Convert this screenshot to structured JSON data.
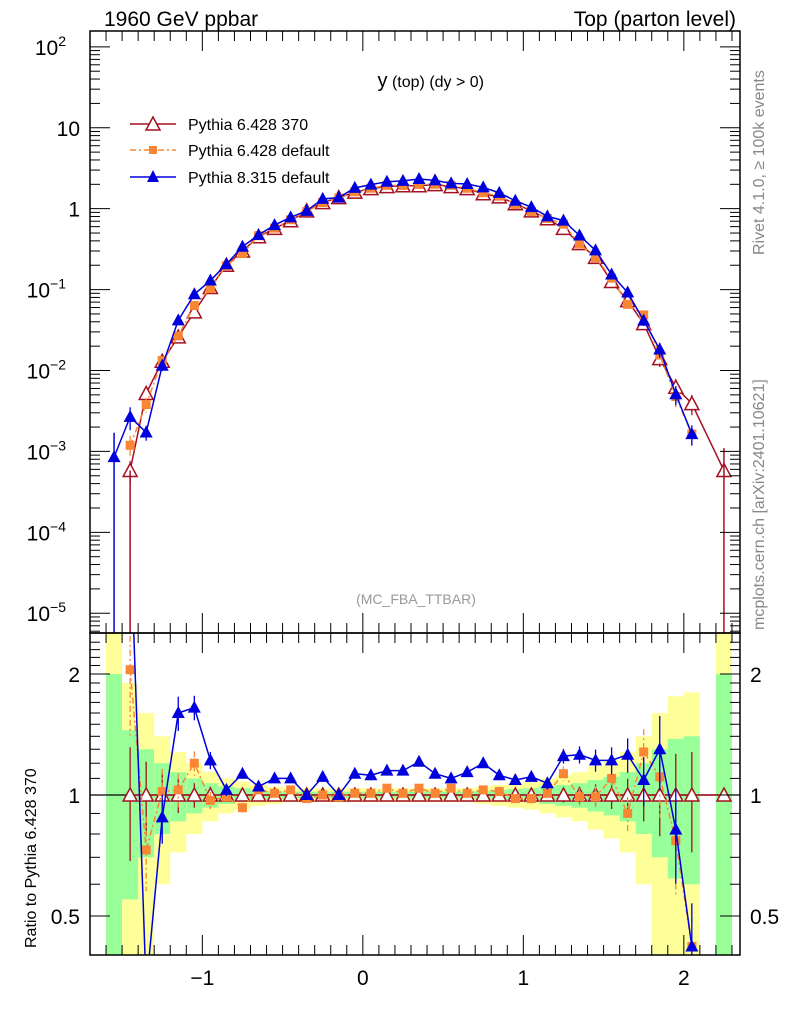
{
  "header": {
    "left_title": "1960 GeV ppbar",
    "right_title": "Top (parton level)",
    "plot_title_main": "y",
    "plot_title_rest": "(top) (dy > 0)",
    "analysis": "(MC_FBA_TTBAR)",
    "side_rivet": "Rivet 4.1.0, ≥ 100k events",
    "side_mcplots": "mcplots.cern.ch [arXiv:2401.10621]"
  },
  "chart_data": {
    "type": "line",
    "title": "y (top) (dy > 0)",
    "xlabel": "",
    "ylabel": "",
    "ratio_ylabel": "Ratio to Pythia 6.428 370",
    "xlim": [
      -1.7,
      2.35
    ],
    "ylim": [
      5.7e-06,
      157
    ],
    "yscale": "log",
    "ratio_ylim": [
      0.4,
      2.53
    ],
    "legend_position": "top-left",
    "x_ticks": [
      {
        "v": -1,
        "label": "−1"
      },
      {
        "v": 0,
        "label": "0"
      },
      {
        "v": 1,
        "label": "1"
      },
      {
        "v": 2,
        "label": "2"
      }
    ],
    "y_ticks": [
      {
        "v": 100,
        "base": "10",
        "sup": "2"
      },
      {
        "v": 10,
        "base": "10",
        "sup": ""
      },
      {
        "v": 1,
        "base": "1",
        "sup": ""
      },
      {
        "v": 0.1,
        "base": "10",
        "sup": "−1"
      },
      {
        "v": 0.01,
        "base": "10",
        "sup": "−2"
      },
      {
        "v": 0.001,
        "base": "10",
        "sup": "−3"
      },
      {
        "v": 0.0001,
        "base": "10",
        "sup": "−4"
      },
      {
        "v": 1e-05,
        "base": "10",
        "sup": "−5"
      }
    ],
    "ratio_ticks": [
      {
        "v": 0.5,
        "label": "0.5"
      },
      {
        "v": 1,
        "label": "1"
      },
      {
        "v": 2,
        "label": "2"
      }
    ],
    "x": [
      -1.55,
      -1.45,
      -1.35,
      -1.25,
      -1.15,
      -1.05,
      -0.95,
      -0.85,
      -0.75,
      -0.65,
      -0.55,
      -0.45,
      -0.35,
      -0.25,
      -0.15,
      -0.05,
      0.05,
      0.15,
      0.25,
      0.35,
      0.45,
      0.55,
      0.65,
      0.75,
      0.85,
      0.95,
      1.05,
      1.15,
      1.25,
      1.35,
      1.45,
      1.55,
      1.65,
      1.75,
      1.85,
      1.95,
      2.05,
      2.15,
      2.25
    ],
    "series": [
      {
        "name": "Pythia 6.428 370",
        "color": "#a50f22",
        "marker": "open-triangle",
        "style": "solid",
        "values": [
          null,
          0.00058,
          0.0052,
          0.013,
          0.026,
          0.053,
          0.106,
          0.2,
          0.3,
          0.45,
          0.57,
          0.71,
          0.94,
          1.19,
          1.37,
          1.6,
          1.77,
          1.87,
          1.92,
          1.92,
          1.98,
          1.87,
          1.77,
          1.53,
          1.4,
          1.15,
          0.94,
          0.75,
          0.57,
          0.37,
          0.25,
          0.126,
          0.073,
          0.038,
          0.014,
          0.0062,
          0.0039,
          null,
          0.00058
        ]
      },
      {
        "name": "Pythia 6.428 default",
        "color": "#f98635",
        "marker": "square",
        "style": "dashdot",
        "ratio": [
          null,
          2.05,
          0.73,
          1.02,
          1.03,
          1.2,
          0.97,
          0.99,
          0.93,
          1.03,
          1.01,
          1.03,
          0.98,
          1.0,
          0.99,
          1.01,
          1.01,
          1.04,
          1.01,
          1.04,
          1.01,
          1.04,
          1.01,
          1.03,
          1.02,
          0.98,
          0.98,
          1.01,
          1.13,
          0.99,
          0.99,
          1.1,
          0.9,
          1.28,
          1.11,
          0.77,
          0.42,
          null,
          null
        ]
      },
      {
        "name": "Pythia 8.315 default",
        "color": "#0000dd",
        "marker": "filled-triangle",
        "style": "solid",
        "ratio": [
          null,
          4.6,
          0.33,
          0.88,
          1.6,
          1.65,
          1.22,
          1.03,
          1.13,
          1.05,
          1.1,
          1.1,
          1.0,
          1.11,
          1.0,
          1.13,
          1.12,
          1.15,
          1.15,
          1.21,
          1.13,
          1.1,
          1.14,
          1.2,
          1.12,
          1.09,
          1.11,
          1.07,
          1.25,
          1.26,
          1.22,
          1.22,
          1.26,
          1.09,
          1.3,
          0.82,
          0.42,
          null,
          null
        ],
        "extra_values": {
          "-1.55": 0.00085
        }
      }
    ],
    "reference_rel_error": [
      1.0,
      0.45,
      0.3,
      0.2,
      0.14,
      0.1,
      0.07,
      0.05,
      0.04,
      0.03,
      0.025,
      0.02,
      0.02,
      0.02,
      0.02,
      0.02,
      0.02,
      0.02,
      0.02,
      0.02,
      0.02,
      0.02,
      0.02,
      0.025,
      0.03,
      0.035,
      0.04,
      0.05,
      0.06,
      0.07,
      0.09,
      0.11,
      0.14,
      0.2,
      0.3,
      0.38,
      0.4,
      null,
      1.0
    ],
    "band_colors": {
      "inner": "#99ff99",
      "outer": "#ffff99"
    }
  }
}
